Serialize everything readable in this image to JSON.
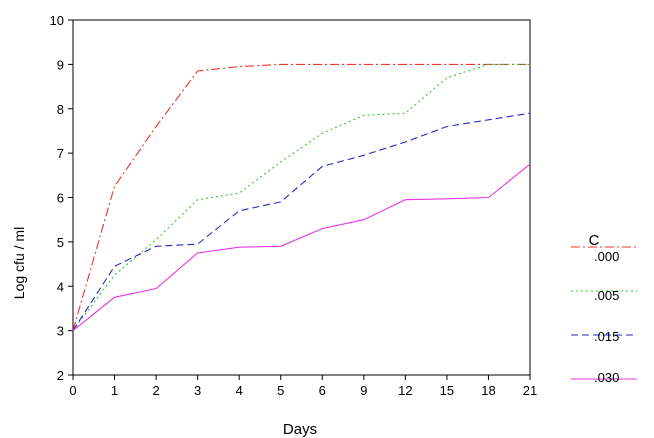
{
  "chart_data": {
    "type": "line",
    "title": "",
    "xlabel": "Days",
    "ylabel": "Log cfu / ml",
    "categories": [
      "0",
      "1",
      "2",
      "3",
      "4",
      "5",
      "6",
      "9",
      "12",
      "15",
      "18",
      "21"
    ],
    "ylim": [
      2,
      10
    ],
    "yticks": [
      2,
      3,
      4,
      5,
      6,
      7,
      8,
      9,
      10
    ],
    "grid": false,
    "legend": {
      "title": "C",
      "placement": "right"
    },
    "series": [
      {
        "name": ".000",
        "color": "#e8352e",
        "dash": "dash-dot",
        "values": [
          3.0,
          6.25,
          7.6,
          8.85,
          8.95,
          9.0,
          9.0,
          9.0,
          9.0,
          9.0,
          9.0,
          9.0
        ]
      },
      {
        "name": ".005",
        "color": "#2ecb2e",
        "dash": "dotted",
        "values": [
          3.0,
          4.25,
          5.05,
          5.95,
          6.1,
          6.8,
          7.45,
          7.85,
          7.9,
          8.7,
          9.0,
          9.0
        ]
      },
      {
        "name": ".015",
        "color": "#2727c9",
        "dash": "dashed",
        "values": [
          3.0,
          4.45,
          4.9,
          4.95,
          5.7,
          5.9,
          6.7,
          6.95,
          7.25,
          7.6,
          7.75,
          7.9
        ]
      },
      {
        "name": ".030",
        "color": "#e535e5",
        "dash": "solid",
        "values": [
          3.0,
          3.75,
          3.95,
          4.75,
          4.88,
          4.9,
          5.3,
          5.5,
          5.95,
          5.97,
          6.0,
          6.75
        ]
      }
    ]
  }
}
